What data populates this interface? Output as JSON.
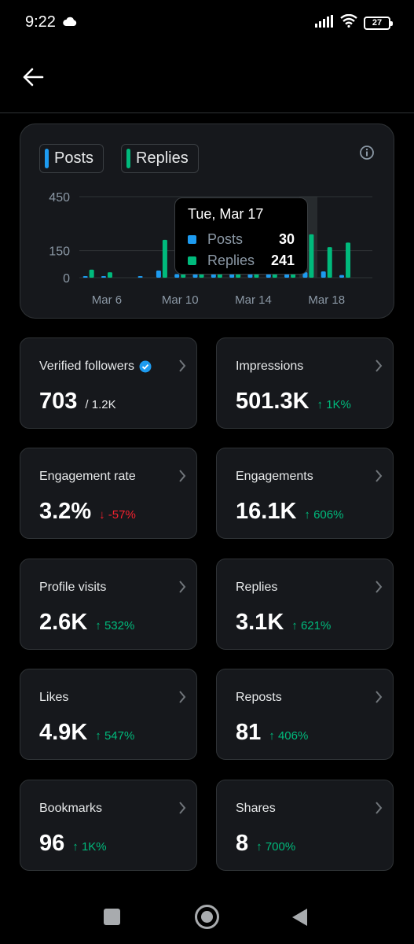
{
  "status": {
    "time": "9:22",
    "battery": "27"
  },
  "legend": [
    {
      "label": "Posts",
      "color": "#1d9bf0"
    },
    {
      "label": "Replies",
      "color": "#00ba7c"
    }
  ],
  "chart_data": {
    "type": "bar",
    "yticks": [
      "450",
      "150",
      "0"
    ],
    "ylim": [
      0,
      450
    ],
    "xtick_labels": [
      "Mar 6",
      "Mar 10",
      "Mar 14",
      "Mar 18"
    ],
    "categories": [
      "Mar 5",
      "Mar 6",
      "Mar 7",
      "Mar 8",
      "Mar 9",
      "Mar 10",
      "Mar 11",
      "Mar 12",
      "Mar 13",
      "Mar 14",
      "Mar 15",
      "Mar 16",
      "Mar 17",
      "Mar 18",
      "Mar 19",
      "Mar 20"
    ],
    "series": [
      {
        "name": "Posts",
        "color": "#1d9bf0",
        "values": [
          5,
          5,
          0,
          5,
          40,
          20,
          20,
          20,
          20,
          20,
          20,
          20,
          30,
          35,
          15,
          0
        ]
      },
      {
        "name": "Replies",
        "color": "#00ba7c",
        "values": [
          45,
          30,
          0,
          0,
          210,
          220,
          200,
          200,
          200,
          200,
          200,
          190,
          241,
          170,
          195,
          0
        ]
      }
    ],
    "highlight_category": "Mar 17",
    "grid": true
  },
  "tooltip": {
    "title": "Tue, Mar 17",
    "rows": [
      {
        "label": "Posts",
        "value": "30",
        "color": "#1d9bf0"
      },
      {
        "label": "Replies",
        "value": "241",
        "color": "#00ba7c"
      }
    ]
  },
  "metrics": [
    {
      "label": "Verified followers",
      "value": "703",
      "sub": "/ 1.2K",
      "change": "",
      "direction": "",
      "verified": true
    },
    {
      "label": "Impressions",
      "value": "501.3K",
      "sub": "",
      "change": "1K%",
      "direction": "up"
    },
    {
      "label": "Engagement rate",
      "value": "3.2%",
      "sub": "",
      "change": "-57%",
      "direction": "down"
    },
    {
      "label": "Engagements",
      "value": "16.1K",
      "sub": "",
      "change": "606%",
      "direction": "up"
    },
    {
      "label": "Profile visits",
      "value": "2.6K",
      "sub": "",
      "change": "532%",
      "direction": "up"
    },
    {
      "label": "Replies",
      "value": "3.1K",
      "sub": "",
      "change": "621%",
      "direction": "up"
    },
    {
      "label": "Likes",
      "value": "4.9K",
      "sub": "",
      "change": "547%",
      "direction": "up"
    },
    {
      "label": "Reposts",
      "value": "81",
      "sub": "",
      "change": "406%",
      "direction": "up"
    },
    {
      "label": "Bookmarks",
      "value": "96",
      "sub": "",
      "change": "1K%",
      "direction": "up"
    },
    {
      "label": "Shares",
      "value": "8",
      "sub": "",
      "change": "700%",
      "direction": "up"
    }
  ]
}
